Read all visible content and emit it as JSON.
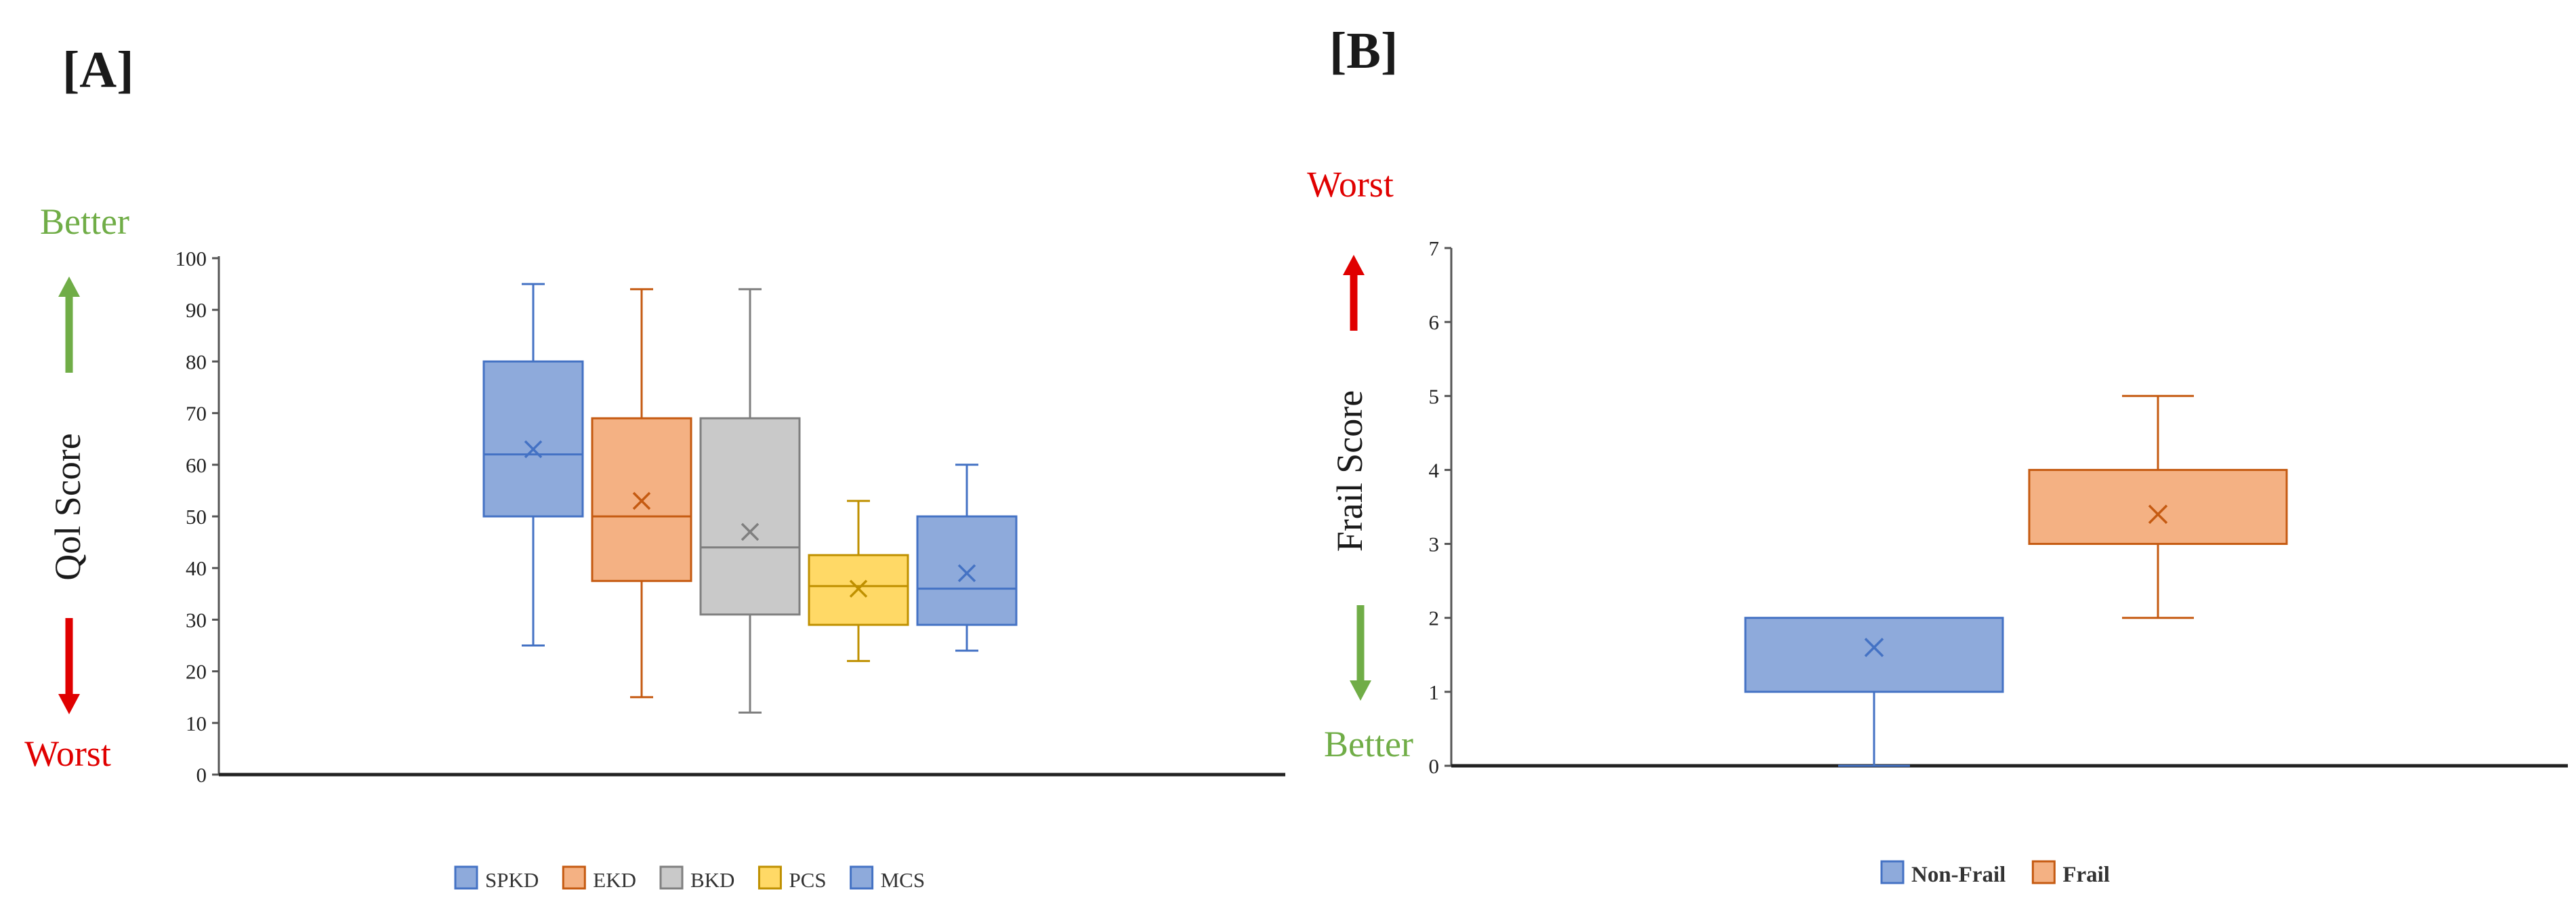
{
  "chart_data": [
    {
      "panel": "[A]",
      "type": "box",
      "ylabel": "Qol Score",
      "ylim": [
        0,
        100
      ],
      "yticks": [
        0,
        10,
        20,
        30,
        40,
        50,
        60,
        70,
        80,
        90,
        100
      ],
      "direction_labels": {
        "top": "Better",
        "bottom": "Worst"
      },
      "legend_position": "bottom",
      "series": [
        {
          "name": "SPKD",
          "min": 25,
          "q1": 50,
          "median": 62,
          "q3": 80,
          "max": 95,
          "mean": 63,
          "color": "#8eaadb",
          "edge": "#4472c4"
        },
        {
          "name": "EKD",
          "min": 15,
          "q1": 37.5,
          "median": 50,
          "q3": 69,
          "max": 94,
          "mean": 53,
          "color": "#f4b183",
          "edge": "#c55a11"
        },
        {
          "name": "BKD",
          "min": 12,
          "q1": 31,
          "median": 44,
          "q3": 69,
          "max": 94,
          "mean": 47,
          "color": "#c9c9c9",
          "edge": "#7f7f7f"
        },
        {
          "name": "PCS",
          "min": 22,
          "q1": 29,
          "median": 36.5,
          "q3": 42.5,
          "max": 53,
          "mean": 36,
          "color": "#ffd966",
          "edge": "#bf9000"
        },
        {
          "name": "MCS",
          "min": 24,
          "q1": 29,
          "median": 36,
          "q3": 50,
          "max": 60,
          "mean": 39,
          "color": "#8eaadb",
          "edge": "#4472c4"
        }
      ]
    },
    {
      "panel": "[B]",
      "type": "box",
      "ylabel": "Frail Score",
      "ylim": [
        0,
        7
      ],
      "yticks": [
        0,
        1,
        2,
        3,
        4,
        5,
        6,
        7
      ],
      "direction_labels": {
        "top": "Worst",
        "bottom": "Better"
      },
      "legend_position": "bottom",
      "series": [
        {
          "name": "Non-Frail",
          "min": 0,
          "q1": 1,
          "median": 1,
          "q3": 2,
          "max": 2,
          "mean": 1.6,
          "color": "#8eaadb",
          "edge": "#4472c4"
        },
        {
          "name": "Frail",
          "min": 2,
          "q1": 3,
          "median": 3,
          "q3": 4,
          "max": 5,
          "mean": 3.4,
          "color": "#f4b183",
          "edge": "#c55a11"
        }
      ]
    }
  ],
  "colors": {
    "green_arrow": "#70ad47",
    "red_arrow": "#e00000",
    "green_text": "#70ad47",
    "red_text": "#e00000"
  }
}
